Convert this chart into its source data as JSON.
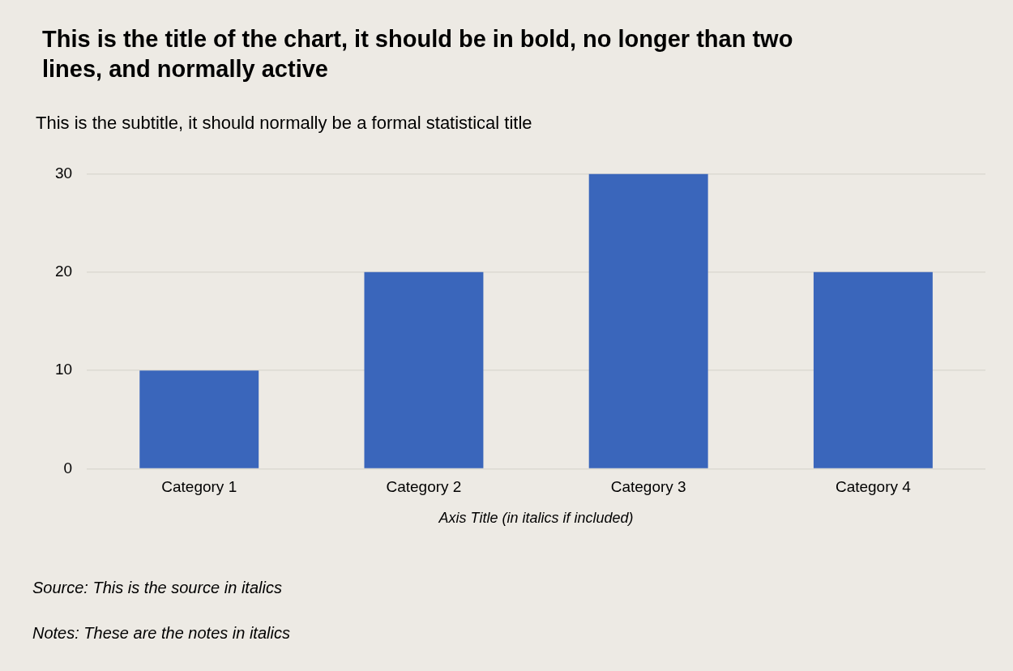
{
  "chart_data": {
    "type": "bar",
    "title": "This is the title of the chart, it should be in bold, no longer than two lines, and normally active",
    "subtitle": "This is the subtitle, it should normally be a formal statistical title",
    "xlabel": "Axis Title (in italics if included)",
    "categories": [
      "Category 1",
      "Category 2",
      "Category 3",
      "Category 4"
    ],
    "values": [
      10,
      20,
      30,
      20
    ],
    "color": "#3a66bb",
    "ylim": [
      0,
      30
    ],
    "yticks": [
      0,
      10,
      20,
      30
    ],
    "grid": "y",
    "legend": false,
    "annotations": [
      "Source: This is the source in italics",
      "Notes: These are the notes in italics"
    ]
  }
}
